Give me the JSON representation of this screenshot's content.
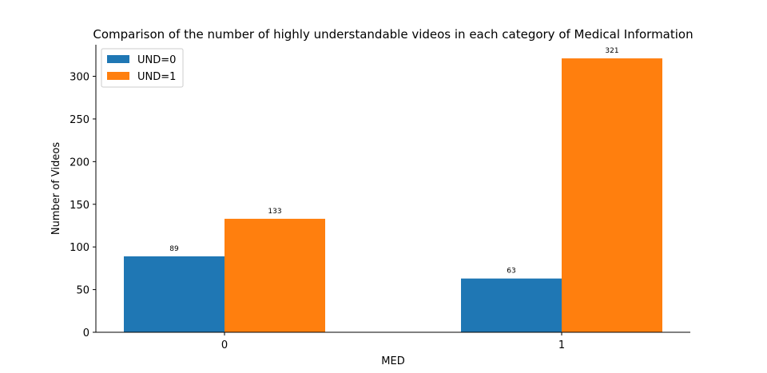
{
  "chart_data": {
    "type": "bar",
    "title": "Comparison of the number of highly understandable videos in each category of Medical Information",
    "xlabel": "MED",
    "ylabel": "Number of Videos",
    "categories": [
      "0",
      "1"
    ],
    "series": [
      {
        "name": "UND=0",
        "values": [
          89,
          63
        ],
        "color": "#1f77b4"
      },
      {
        "name": "UND=1",
        "values": [
          133,
          321
        ],
        "color": "#ff7f0e"
      }
    ],
    "ylim": [
      0,
      337
    ],
    "yticks": [
      0,
      50,
      100,
      150,
      200,
      250,
      300
    ],
    "legend_position": "top-left",
    "grid": false
  }
}
